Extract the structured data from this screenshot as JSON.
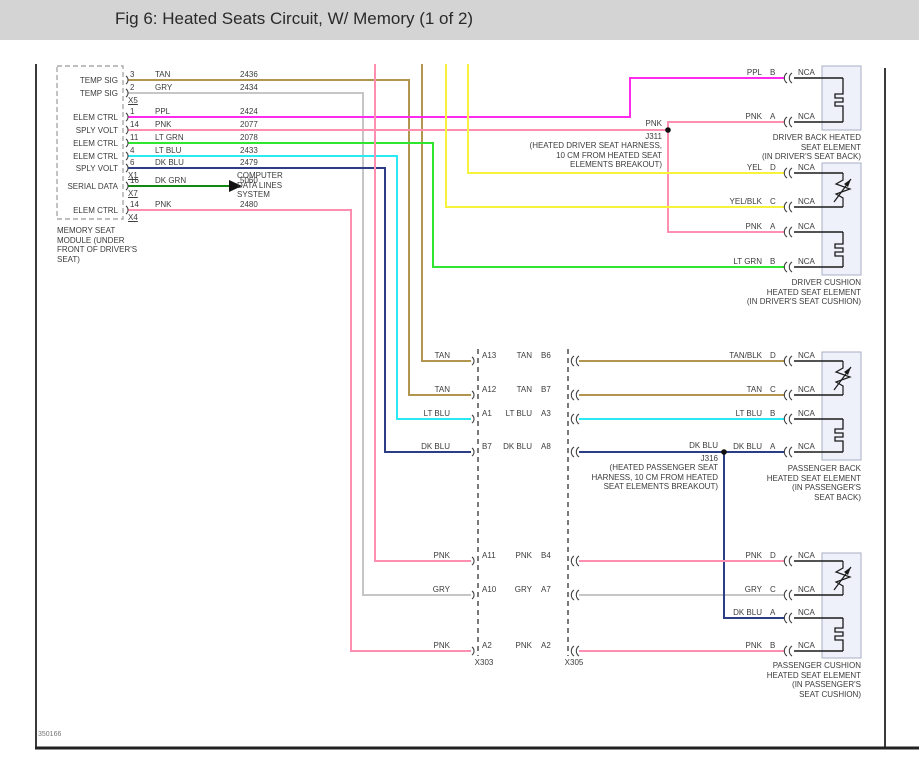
{
  "title": "Fig 6: Heated Seats Circuit, W/ Memory (1 of 2)",
  "footer_code": "350166",
  "wire_colors": {
    "TAN": "#b2954e",
    "GRY": "#c6c6c6",
    "PPL": "#ff2aee",
    "PNK": "#ff8fb0",
    "LT GRN": "#2ee62e",
    "LT BLU": "#29e9f2",
    "DK BLU": "#2b3d85",
    "DK GRN": "#128812",
    "YEL": "#f7f33b"
  },
  "module": {
    "caption": "MEMORY SEAT MODULE (UNDER FRONT OF DRIVER'S SEAT)",
    "connector_labels": [
      "X5",
      "X1",
      "X7",
      "X4"
    ],
    "pins": [
      {
        "label": "TEMP SIG",
        "pin": "3",
        "color": "TAN",
        "circuit": "2436"
      },
      {
        "label": "TEMP SIG",
        "pin": "2",
        "color": "GRY",
        "circuit": "2434"
      },
      {
        "label": "ELEM CTRL",
        "pin": "1",
        "color": "PPL",
        "circuit": "2424"
      },
      {
        "label": "SPLY VOLT",
        "pin": "14",
        "color": "PNK",
        "circuit": "2077"
      },
      {
        "label": "ELEM CTRL",
        "pin": "11",
        "color": "LT GRN",
        "circuit": "2078"
      },
      {
        "label": "ELEM CTRL",
        "pin": "4",
        "color": "LT BLU",
        "circuit": "2433"
      },
      {
        "label": "SPLY VOLT",
        "pin": "6",
        "color": "DK BLU",
        "circuit": "2479"
      },
      {
        "label": "SERIAL DATA",
        "pin": "16",
        "color": "DK GRN",
        "circuit": "5060"
      },
      {
        "label": "ELEM CTRL",
        "pin": "14",
        "color": "PNK",
        "circuit": "2480"
      }
    ]
  },
  "computer_node": {
    "lines": [
      "COMPUTER",
      "DATA LINES",
      "SYSTEM"
    ]
  },
  "junctions": {
    "j311": {
      "wire": "PNK",
      "name": "J311",
      "desc": [
        "(HEATED DRIVER SEAT HARNESS,",
        "10 CM FROM HEATED SEAT",
        "ELEMENTS BREAKOUT)"
      ]
    },
    "j316": {
      "wire": "DK BLU",
      "name": "J316",
      "desc": [
        "(HEATED PASSENGER SEAT",
        "HARNESS, 10 CM FROM HEATED",
        "SEAT ELEMENTS BREAKOUT)"
      ]
    }
  },
  "inline_connectors": {
    "x303": "X303",
    "x305": "X305",
    "rows": [
      {
        "l_color": "TAN",
        "l_pin": "A13",
        "r_color": "TAN",
        "r_pin": "B6"
      },
      {
        "l_color": "TAN",
        "l_pin": "A12",
        "r_color": "TAN",
        "r_pin": "B7"
      },
      {
        "l_color": "LT BLU",
        "l_pin": "A1",
        "r_color": "LT BLU",
        "r_pin": "A3"
      },
      {
        "l_color": "DK BLU",
        "l_pin": "B7",
        "r_color": "DK BLU",
        "r_pin": "A8"
      },
      {
        "l_color": "PNK",
        "l_pin": "A11",
        "r_color": "PNK",
        "r_pin": "B4"
      },
      {
        "l_color": "GRY",
        "l_pin": "A10",
        "r_color": "GRY",
        "r_pin": "A7"
      },
      {
        "l_color": "PNK",
        "l_pin": "A2",
        "r_color": "PNK",
        "r_pin": "A2"
      }
    ]
  },
  "elements": [
    {
      "caption": [
        "DRIVER BACK HEATED",
        "SEAT ELEMENT",
        "(IN DRIVER'S SEAT BACK)"
      ],
      "pins": [
        {
          "color": "PPL",
          "pin": "B",
          "term": "NCA"
        },
        {
          "color": "PNK",
          "pin": "A",
          "term": "NCA"
        }
      ]
    },
    {
      "caption": [
        "DRIVER CUSHION",
        "HEATED SEAT ELEMENT",
        "(IN DRIVER'S SEAT CUSHION)"
      ],
      "pins": [
        {
          "color": "YEL",
          "pin": "D",
          "term": "NCA"
        },
        {
          "color": "YEL/BLK",
          "pin": "C",
          "term": "NCA"
        },
        {
          "color": "PNK",
          "pin": "A",
          "term": "NCA"
        },
        {
          "color": "LT GRN",
          "pin": "B",
          "term": "NCA"
        }
      ]
    },
    {
      "caption": [
        "PASSENGER BACK",
        "HEATED SEAT ELEMENT",
        "(IN PASSENGER'S",
        "SEAT BACK)"
      ],
      "pins": [
        {
          "color": "TAN/BLK",
          "pin": "D",
          "term": "NCA"
        },
        {
          "color": "TAN",
          "pin": "C",
          "term": "NCA"
        },
        {
          "color": "LT BLU",
          "pin": "B",
          "term": "NCA"
        },
        {
          "color": "DK BLU",
          "pin": "A",
          "term": "NCA"
        }
      ]
    },
    {
      "caption": [
        "PASSENGER CUSHION",
        "HEATED SEAT ELEMENT",
        "(IN PASSENGER'S",
        "SEAT CUSHION)"
      ],
      "pins": [
        {
          "color": "PNK",
          "pin": "D",
          "term": "NCA"
        },
        {
          "color": "GRY",
          "pin": "C",
          "term": "NCA"
        },
        {
          "color": "DK BLU",
          "pin": "A",
          "term": "NCA"
        },
        {
          "color": "PNK",
          "pin": "B",
          "term": "NCA"
        }
      ]
    }
  ]
}
